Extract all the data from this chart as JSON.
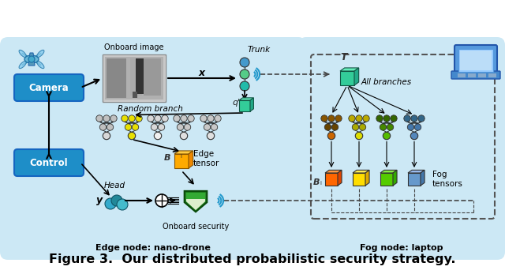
{
  "fig_width": 6.4,
  "fig_height": 3.47,
  "dpi": 100,
  "caption": "Figure 3.  Our distributed probabilistic security strategy.",
  "caption_fontsize": 11.5,
  "bg_color": "#ffffff",
  "panel_bg": "#cce8f5",
  "camera_color": "#1e8ec8",
  "control_color": "#1e8ec8",
  "camera_label": "Camera",
  "control_label": "Control",
  "edge_label": "Edge node: nano-drone",
  "fog_label": "Fog node: laptop",
  "onboard_image_label": "Onboard image",
  "trunk_label": "Trunk",
  "random_branch_label": "Random branch",
  "all_branches_label": "All branches",
  "edge_tensor_label": "Edge\ntensor",
  "fog_tensors_label": "Fog\ntensors",
  "head_label": "Head",
  "onboard_security_label": "Onboard security",
  "q_prime_label": "q'",
  "y_hat_label": "y",
  "x_label": "x",
  "beta_hat_label": "B",
  "beta_i_label": "B",
  "T_label": "T"
}
